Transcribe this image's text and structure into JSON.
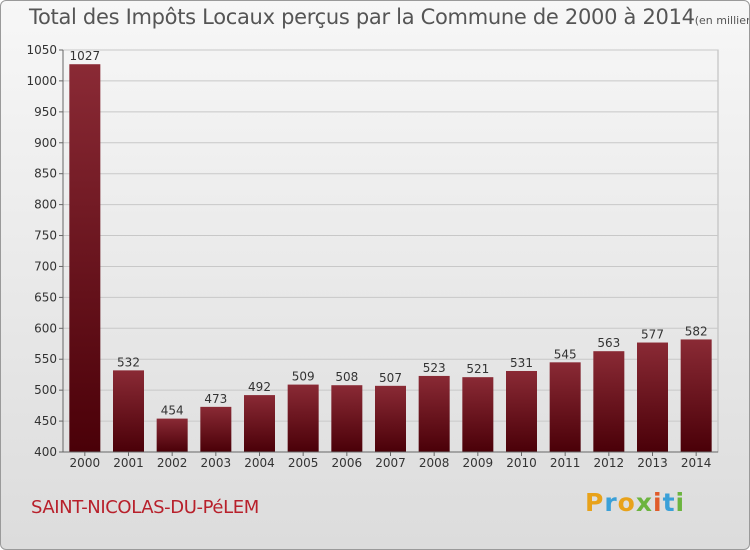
{
  "header": {
    "title": "Total des Impôts Locaux perçus par la Commune de 2000 à 2014",
    "unit": "(en milliers d'€)"
  },
  "footer": {
    "commune": "SAINT-NICOLAS-DU-PéLEM",
    "logo": "Proxiti"
  },
  "colors": {
    "bar_top": "#8a2a35",
    "bar_bottom": "#4a0008",
    "grid": "#c8c8c8",
    "commune_text": "#b8202b"
  },
  "chart_data": {
    "type": "bar",
    "title": "Total des Impôts Locaux perçus par la Commune de 2000 à 2014",
    "categories": [
      "2000",
      "2001",
      "2002",
      "2003",
      "2004",
      "2005",
      "2006",
      "2007",
      "2008",
      "2009",
      "2010",
      "2011",
      "2012",
      "2013",
      "2014"
    ],
    "values": [
      1027,
      532,
      454,
      473,
      492,
      509,
      508,
      507,
      523,
      521,
      531,
      545,
      563,
      577,
      582
    ],
    "ylim": [
      400,
      1050
    ],
    "yticks": [
      400,
      450,
      500,
      550,
      600,
      650,
      700,
      750,
      800,
      850,
      900,
      950,
      1000,
      1050
    ],
    "grid": true,
    "data_labels": true,
    "xlabel": "",
    "ylabel": ""
  }
}
